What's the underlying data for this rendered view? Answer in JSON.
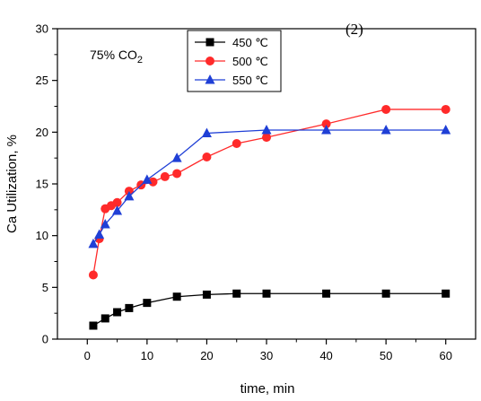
{
  "chart_data": {
    "type": "line",
    "panel_label": "(2)",
    "annotation": "75% CO",
    "annotation_sub": "2",
    "xlabel": "time, min",
    "ylabel": "Ca Utilization, %",
    "xlim": [
      -5,
      65
    ],
    "ylim": [
      0,
      30
    ],
    "xticks": [
      0,
      10,
      20,
      30,
      40,
      50,
      60
    ],
    "yticks": [
      0,
      5,
      10,
      15,
      20,
      25,
      30
    ],
    "legend_position": "top-center",
    "series": [
      {
        "name": "450 ℃",
        "color": "#000000",
        "marker": "square",
        "x": [
          1,
          3,
          5,
          7,
          10,
          15,
          20,
          25,
          30,
          40,
          50,
          60
        ],
        "y": [
          1.3,
          2.0,
          2.6,
          3.0,
          3.5,
          4.1,
          4.3,
          4.4,
          4.4,
          4.4,
          4.4,
          4.4
        ]
      },
      {
        "name": "500 ℃",
        "color": "#ff2a2a",
        "marker": "circle",
        "x": [
          1,
          2,
          3,
          4,
          5,
          7,
          9,
          11,
          13,
          15,
          20,
          25,
          30,
          40,
          50,
          60
        ],
        "y": [
          6.2,
          9.7,
          12.6,
          12.9,
          13.2,
          14.3,
          14.9,
          15.2,
          15.7,
          16.0,
          17.6,
          18.9,
          19.5,
          20.8,
          22.2,
          22.2
        ]
      },
      {
        "name": "550 ℃",
        "color": "#1f3fd6",
        "marker": "triangle",
        "x": [
          1,
          2,
          3,
          5,
          7,
          10,
          15,
          20,
          30,
          40,
          50,
          60
        ],
        "y": [
          9.2,
          10.1,
          11.1,
          12.4,
          13.8,
          15.4,
          17.5,
          19.9,
          20.2,
          20.2,
          20.2,
          20.2
        ]
      }
    ]
  }
}
